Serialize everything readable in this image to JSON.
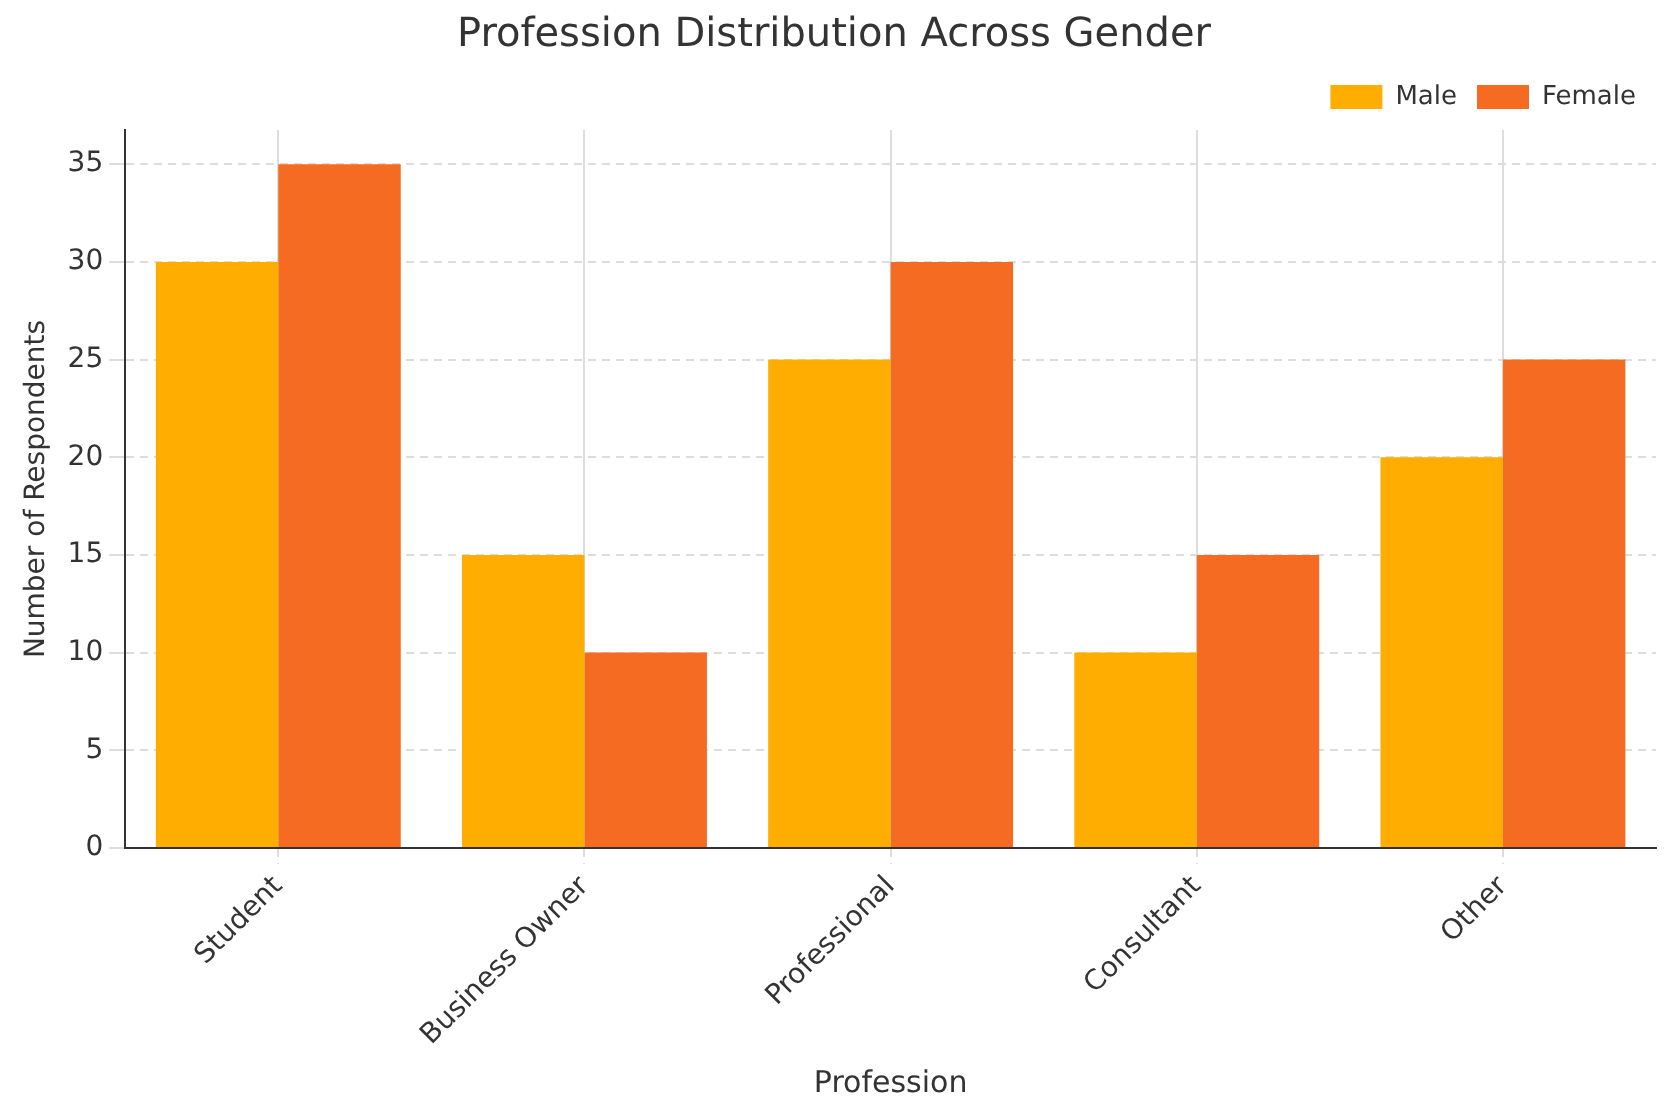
{
  "chart_data": {
    "type": "bar",
    "title": "Profession Distribution Across Gender",
    "xlabel": "Profession",
    "ylabel": "Number of Respondents",
    "categories": [
      "Student",
      "Business Owner",
      "Professional",
      "Consultant",
      "Other"
    ],
    "series": [
      {
        "name": "Male",
        "color": "#ffad00",
        "values": [
          30,
          15,
          25,
          10,
          20
        ]
      },
      {
        "name": "Female",
        "color": "#f46b21",
        "values": [
          35,
          10,
          30,
          15,
          25
        ]
      }
    ],
    "ylim": [
      0,
      36.75
    ],
    "yticks": [
      0,
      5,
      10,
      15,
      20,
      25,
      30,
      35
    ],
    "grid": true,
    "legend": "top right"
  }
}
